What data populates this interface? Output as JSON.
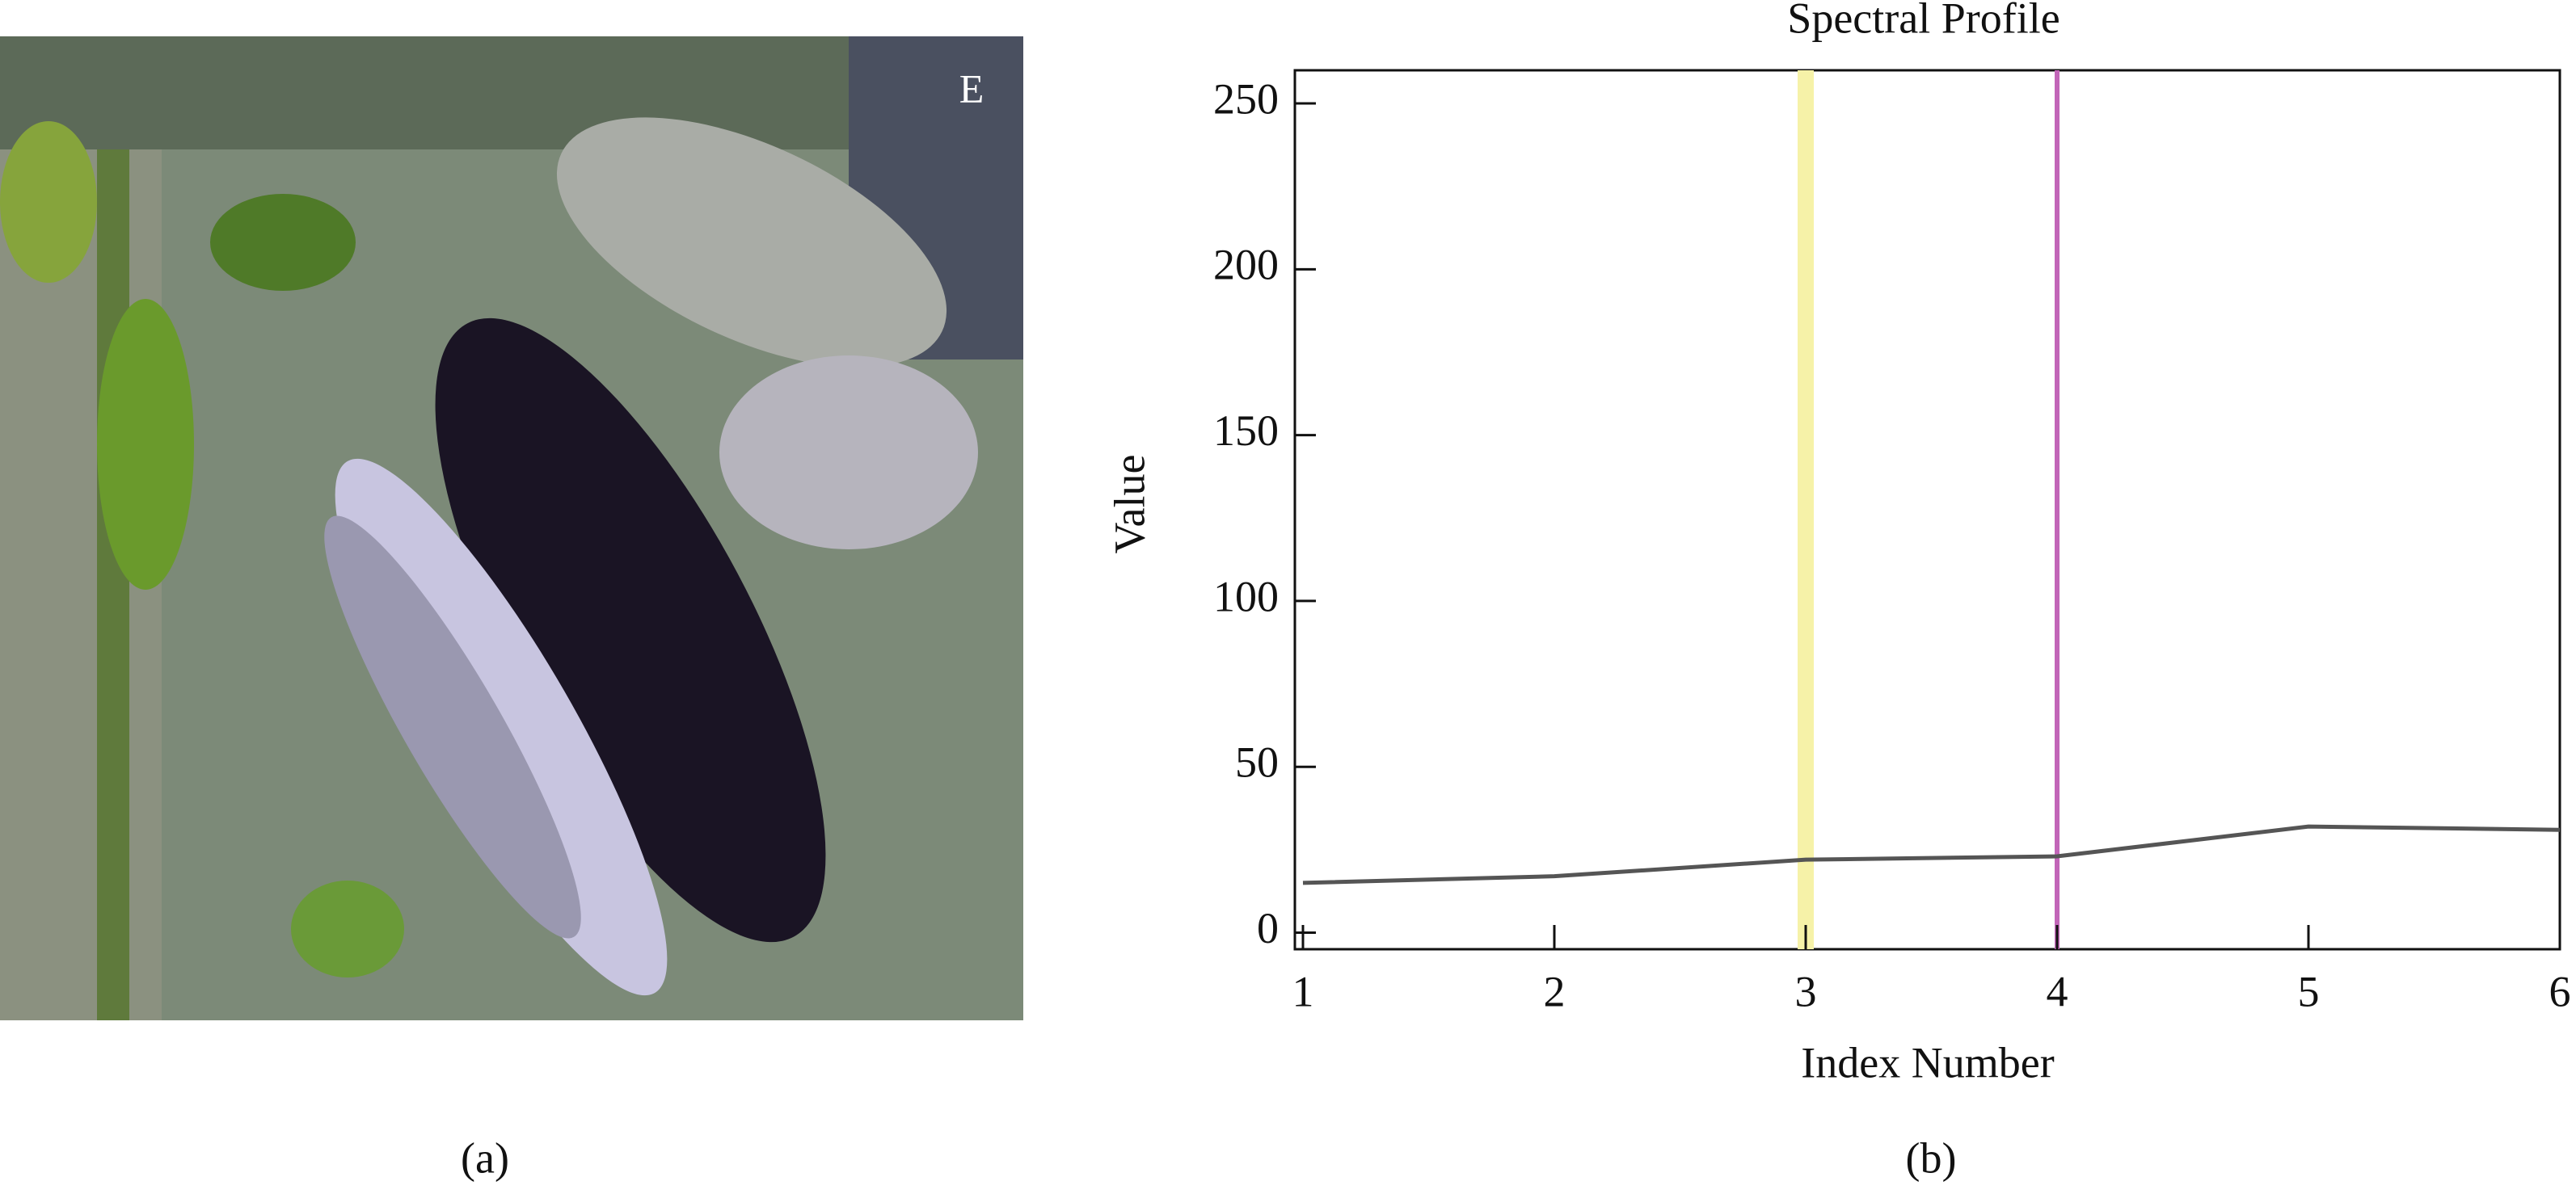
{
  "captions": {
    "left": "(a)",
    "right": "(b)",
    "image_marker": "E"
  },
  "chart_data": {
    "type": "line",
    "title": "Spectral Profile",
    "x_label": "Index Number",
    "y_label": "Value",
    "x": [
      1,
      2,
      3,
      4,
      5,
      6
    ],
    "series": [
      {
        "color": "#555555",
        "values": [
          15,
          17,
          22,
          23,
          32,
          31
        ]
      }
    ],
    "markers": [
      {
        "x": 3,
        "color": "#f6f2a8"
      },
      {
        "x": 4,
        "color": "#c266b8"
      }
    ],
    "xlim": [
      1,
      6
    ],
    "xticks": [
      1,
      2,
      3,
      4,
      5,
      6
    ],
    "ylim": [
      -5,
      260
    ],
    "yticks": [
      0,
      50,
      100,
      150,
      200,
      250
    ],
    "grid": false
  }
}
